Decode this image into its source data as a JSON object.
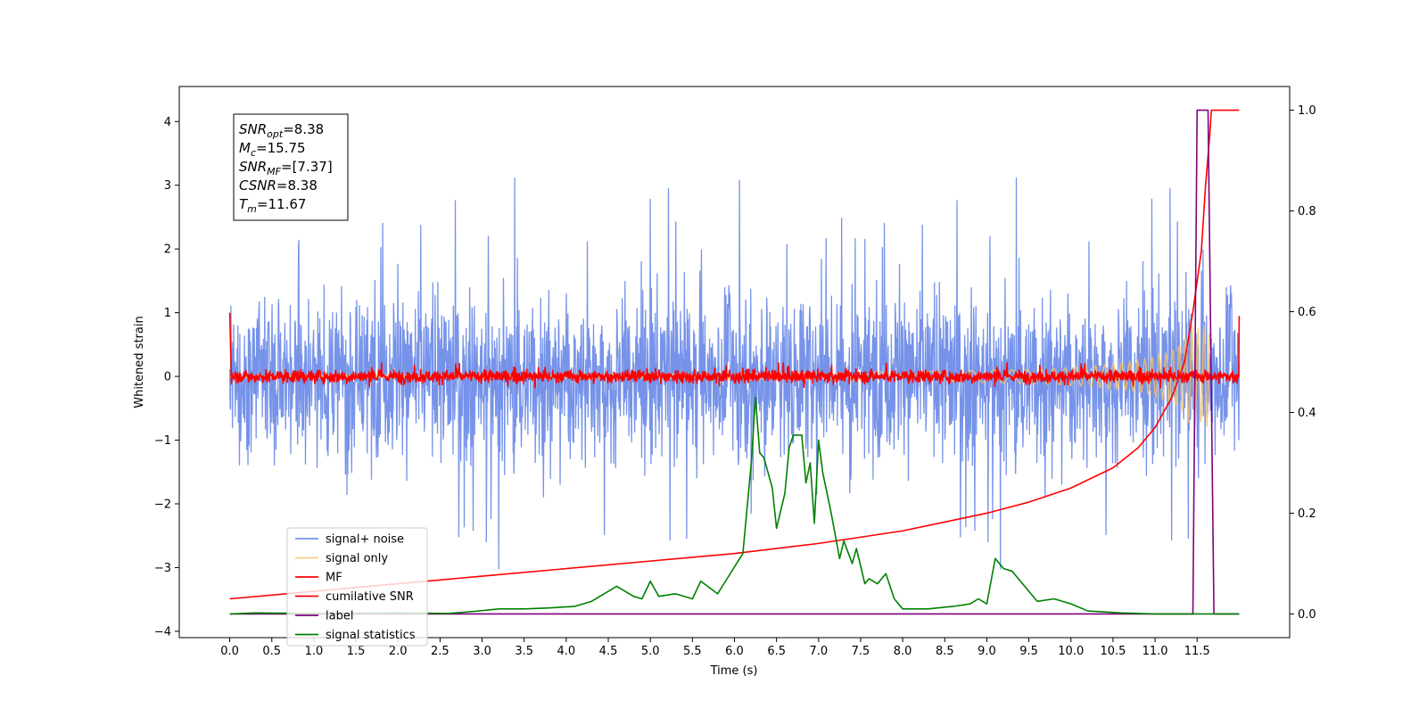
{
  "chart_data": {
    "type": "line",
    "title": "",
    "xlabel": "Time (s)",
    "ylabel": "Whitened strain",
    "y2label": "",
    "xlim": [
      -0.6,
      12.6
    ],
    "ylim": [
      -4.1,
      4.55
    ],
    "y2lim": [
      -0.047,
      1.047
    ],
    "x_ticks": [
      0.0,
      0.5,
      1.0,
      1.5,
      2.0,
      2.5,
      3.0,
      3.5,
      4.0,
      4.5,
      5.0,
      5.5,
      6.0,
      6.5,
      7.0,
      7.5,
      8.0,
      8.5,
      9.0,
      9.5,
      10.0,
      10.5,
      11.0,
      11.5
    ],
    "x_tick_labels": [
      "0.0",
      "0.5",
      "1.0",
      "1.5",
      "2.0",
      "2.5",
      "3.0",
      "3.5",
      "4.0",
      "4.5",
      "5.0",
      "5.5",
      "6.0",
      "6.5",
      "7.0",
      "7.5",
      "8.0",
      "8.5",
      "9.0",
      "9.5",
      "10.0",
      "10.5",
      "11.0",
      "11.5"
    ],
    "y_ticks": [
      4,
      3,
      2,
      1,
      0,
      -1,
      -2,
      -3,
      -4
    ],
    "y_tick_labels": [
      "4",
      "3",
      "2",
      "1",
      "0",
      "−1",
      "−2",
      "−3",
      "−4"
    ],
    "y2_ticks": [
      1.0,
      0.8,
      0.6,
      0.4,
      0.2,
      0.0
    ],
    "y2_tick_labels": [
      "1.0",
      "0.8",
      "0.6",
      "0.4",
      "0.2",
      "0.0"
    ],
    "grid": false,
    "legend_position": "lower-left",
    "annotation_lines": [
      {
        "symbol": "SNR",
        "sub": "opt",
        "value": "=8.38"
      },
      {
        "symbol": "M",
        "sub": "c",
        "value": "=15.75"
      },
      {
        "symbol": "SNR",
        "sub": "MF",
        "value": "=[7.37]"
      },
      {
        "symbol": "CSNR",
        "sub": "",
        "value": "=8.38"
      },
      {
        "symbol": "T",
        "sub": "m",
        "value": "=11.67"
      }
    ],
    "series": [
      {
        "name": "signal+ noise",
        "axis": "left",
        "color": "#4169e1",
        "opacity": 0.72,
        "generator": "noise",
        "x_range": [
          0.0,
          12.0
        ],
        "envelope": [
          -2.2,
          2.3
        ],
        "peaks_max": 4.15,
        "peaks_min": -3.65
      },
      {
        "name": "signal only",
        "axis": "left",
        "color": "#f5c266",
        "opacity": 0.8,
        "generator": "chirp",
        "x_range": [
          0.0,
          11.67
        ],
        "amplitude_end": 0.8
      },
      {
        "name": "MF",
        "axis": "left",
        "color": "#ff0000",
        "generator": "mf",
        "x_range": [
          0.0,
          12.0
        ],
        "start_value": 1.0,
        "envelope": [
          -0.2,
          0.3
        ],
        "end_value": 0.95
      },
      {
        "name": "cumilative SNR",
        "axis": "right",
        "color": "#ff0000",
        "points": [
          [
            0.0,
            0.03
          ],
          [
            1.0,
            0.045
          ],
          [
            2.0,
            0.06
          ],
          [
            3.0,
            0.075
          ],
          [
            4.0,
            0.09
          ],
          [
            5.0,
            0.105
          ],
          [
            6.0,
            0.12
          ],
          [
            7.0,
            0.14
          ],
          [
            8.0,
            0.165
          ],
          [
            9.0,
            0.2
          ],
          [
            9.5,
            0.222
          ],
          [
            10.0,
            0.25
          ],
          [
            10.5,
            0.29
          ],
          [
            10.8,
            0.33
          ],
          [
            11.0,
            0.37
          ],
          [
            11.2,
            0.43
          ],
          [
            11.35,
            0.5
          ],
          [
            11.45,
            0.6
          ],
          [
            11.55,
            0.72
          ],
          [
            11.6,
            0.85
          ],
          [
            11.65,
            0.95
          ],
          [
            11.67,
            1.0
          ],
          [
            12.0,
            1.0
          ]
        ]
      },
      {
        "name": "label",
        "axis": "right",
        "color": "#800080",
        "points": [
          [
            0.0,
            0.0
          ],
          [
            11.45,
            0.0
          ],
          [
            11.5,
            1.0
          ],
          [
            11.63,
            1.0
          ],
          [
            11.7,
            0.0
          ],
          [
            12.0,
            0.0
          ]
        ]
      },
      {
        "name": "signal statistics",
        "axis": "right",
        "color": "#008000",
        "points": [
          [
            0.0,
            0.0
          ],
          [
            0.3,
            0.002
          ],
          [
            1.0,
            0.001
          ],
          [
            2.0,
            0.002
          ],
          [
            2.6,
            0.001
          ],
          [
            2.9,
            0.005
          ],
          [
            3.2,
            0.01
          ],
          [
            3.5,
            0.01
          ],
          [
            3.8,
            0.012
          ],
          [
            4.1,
            0.015
          ],
          [
            4.3,
            0.025
          ],
          [
            4.6,
            0.055
          ],
          [
            4.8,
            0.035
          ],
          [
            4.9,
            0.03
          ],
          [
            5.0,
            0.065
          ],
          [
            5.1,
            0.035
          ],
          [
            5.3,
            0.04
          ],
          [
            5.5,
            0.03
          ],
          [
            5.6,
            0.065
          ],
          [
            5.8,
            0.04
          ],
          [
            5.95,
            0.08
          ],
          [
            6.1,
            0.12
          ],
          [
            6.2,
            0.3
          ],
          [
            6.25,
            0.43
          ],
          [
            6.3,
            0.32
          ],
          [
            6.35,
            0.31
          ],
          [
            6.45,
            0.25
          ],
          [
            6.5,
            0.17
          ],
          [
            6.6,
            0.24
          ],
          [
            6.65,
            0.33
          ],
          [
            6.7,
            0.355
          ],
          [
            6.8,
            0.355
          ],
          [
            6.85,
            0.26
          ],
          [
            6.9,
            0.3
          ],
          [
            6.95,
            0.18
          ],
          [
            7.0,
            0.345
          ],
          [
            7.05,
            0.28
          ],
          [
            7.15,
            0.2
          ],
          [
            7.25,
            0.11
          ],
          [
            7.3,
            0.145
          ],
          [
            7.4,
            0.1
          ],
          [
            7.45,
            0.13
          ],
          [
            7.55,
            0.06
          ],
          [
            7.6,
            0.07
          ],
          [
            7.7,
            0.06
          ],
          [
            7.8,
            0.08
          ],
          [
            7.9,
            0.03
          ],
          [
            8.0,
            0.01
          ],
          [
            8.3,
            0.01
          ],
          [
            8.6,
            0.015
          ],
          [
            8.8,
            0.02
          ],
          [
            8.9,
            0.03
          ],
          [
            9.0,
            0.02
          ],
          [
            9.1,
            0.11
          ],
          [
            9.2,
            0.09
          ],
          [
            9.3,
            0.085
          ],
          [
            9.4,
            0.065
          ],
          [
            9.5,
            0.045
          ],
          [
            9.6,
            0.025
          ],
          [
            9.8,
            0.03
          ],
          [
            10.0,
            0.02
          ],
          [
            10.2,
            0.006
          ],
          [
            10.6,
            0.002
          ],
          [
            11.0,
            0.0
          ],
          [
            12.0,
            0.0
          ]
        ]
      }
    ]
  }
}
